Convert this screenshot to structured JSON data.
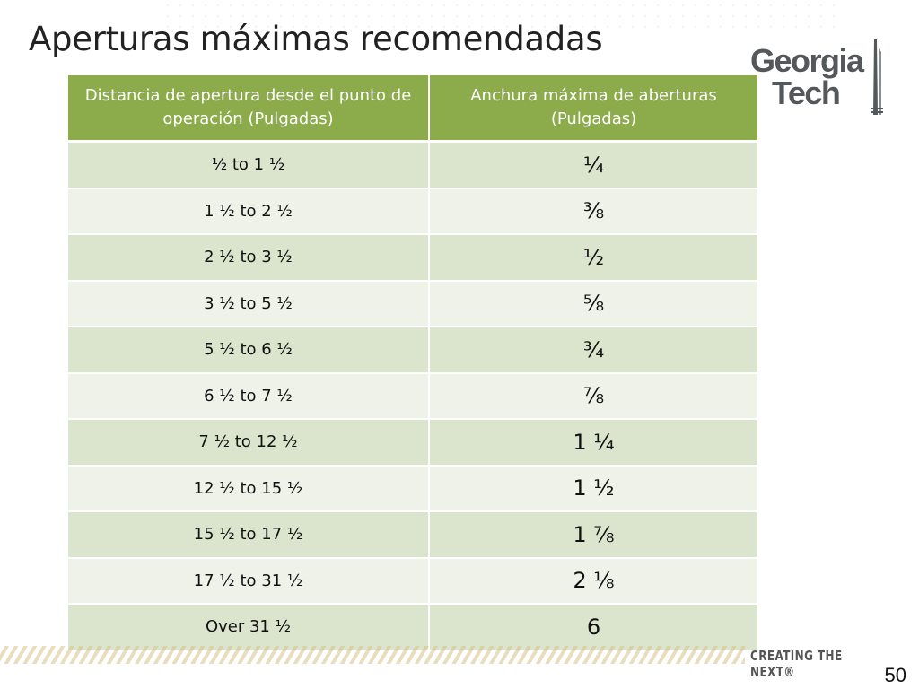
{
  "slide": {
    "title": "Aperturas máximas recomendadas",
    "page_number": "50"
  },
  "logo": {
    "line1": "Georgia",
    "line2": "Tech"
  },
  "footer": {
    "tagline": "CREATING THE NEXT®"
  },
  "table": {
    "headers": [
      "Distancia de apertura desde el punto de operación (Pulgadas)",
      "Anchura máxima de aberturas (Pulgadas)"
    ],
    "rows": [
      {
        "distance": "½ to 1 ½",
        "width": "¼"
      },
      {
        "distance": "1 ½ to 2 ½",
        "width": "⅜"
      },
      {
        "distance": "2 ½ to 3 ½",
        "width": "½"
      },
      {
        "distance": "3 ½ to 5 ½",
        "width": "⅝"
      },
      {
        "distance": "5 ½ to 6 ½",
        "width": "¾"
      },
      {
        "distance": "6 ½ to 7 ½",
        "width": "⅞"
      },
      {
        "distance": "7 ½ to 12 ½",
        "width": "1 ¼"
      },
      {
        "distance": "12 ½ to 15 ½",
        "width": "1 ½"
      },
      {
        "distance": "15 ½ to 17 ½",
        "width": "1 ⅞"
      },
      {
        "distance": "17 ½ to 31 ½",
        "width": "2 ⅛"
      },
      {
        "distance": "Over 31 ½",
        "width": "6"
      }
    ]
  },
  "colors": {
    "header_bg": "#8cab4b",
    "row_dark": "#dbe5cd",
    "row_light": "#eef2e8",
    "logo_gray": "#54585a"
  },
  "icons": {
    "logo": "georgia-tech-logo"
  }
}
